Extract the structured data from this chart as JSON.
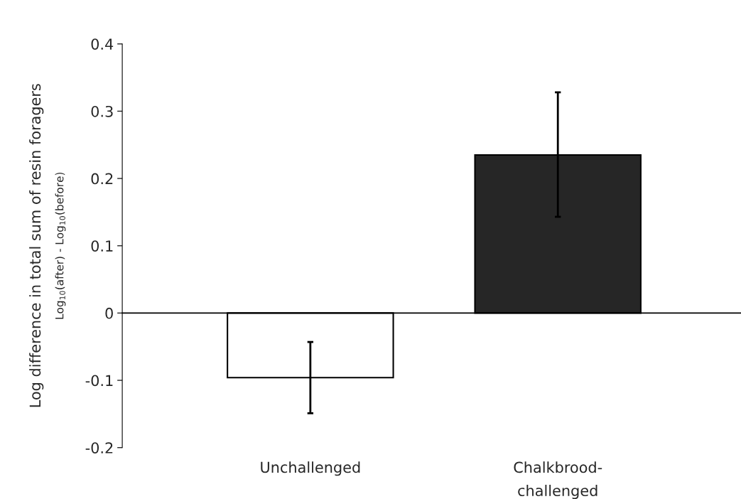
{
  "chart_data": {
    "type": "bar",
    "ylabel": "Log difference in total sum of resin foragers",
    "annotations": [
      "Log$_{10}$(after) - Log$_{10}$(before)"
    ],
    "categories": [
      "Unchallenged",
      "Chalkbrood-\nchallenged"
    ],
    "values": [
      -0.096,
      0.235
    ],
    "colors": [
      "#ffffff",
      "#262626"
    ],
    "errors": [
      [
        -0.149,
        -0.043
      ],
      [
        0.143,
        0.328
      ]
    ],
    "ylim": [
      -0.2,
      0.4
    ],
    "yticks": [
      -0.2,
      -0.1,
      0,
      0.1,
      0.2,
      0.3,
      0.4
    ]
  }
}
